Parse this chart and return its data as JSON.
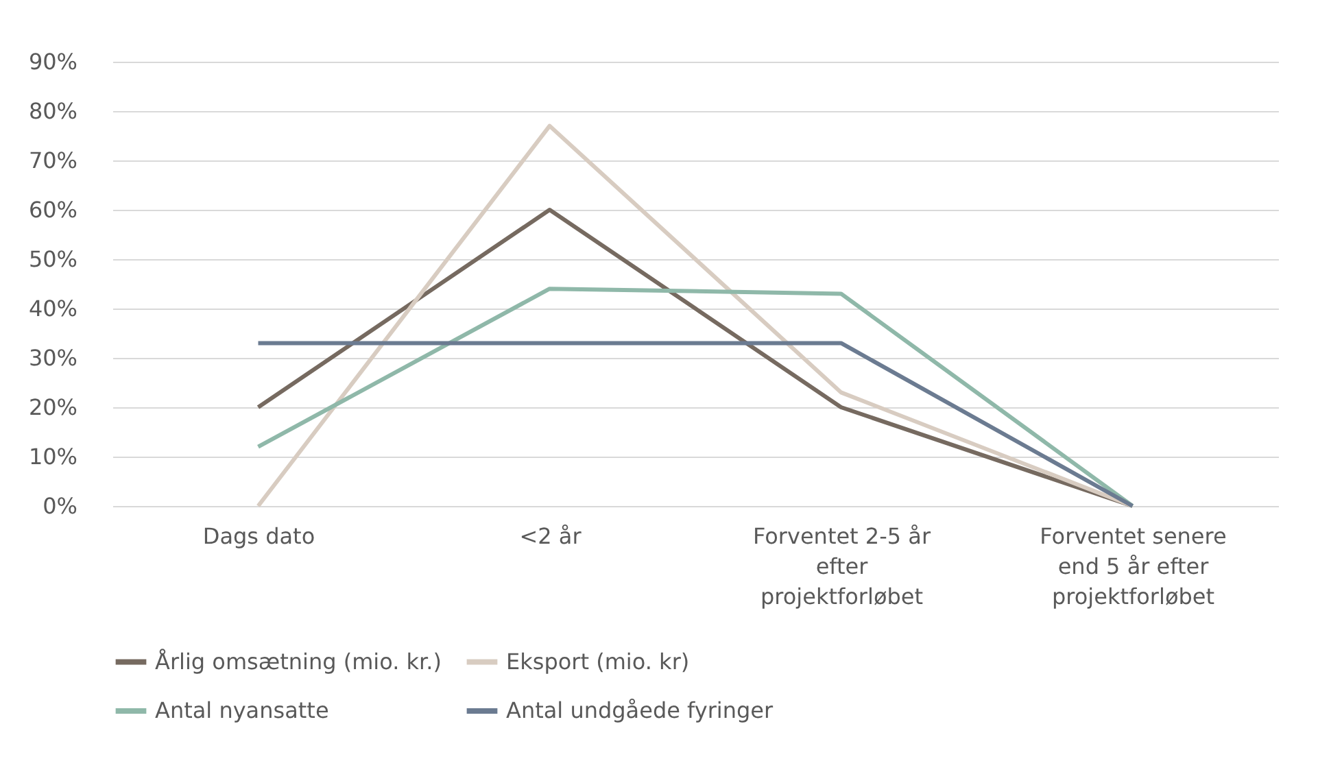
{
  "chart_data": {
    "type": "line",
    "categories": [
      "Dags dato",
      "<2 år",
      "Forventet 2-5 år efter projektforløbet",
      "Forventet senere end 5 år efter projektforløbet"
    ],
    "series": [
      {
        "name": "Årlig omsætning (mio. kr.)",
        "color": "#766a60",
        "values": [
          20,
          60,
          20,
          0
        ]
      },
      {
        "name": "Eksport (mio. kr)",
        "color": "#d8ccc1",
        "values": [
          0,
          77,
          23,
          0
        ]
      },
      {
        "name": "Antal nyansatte",
        "color": "#8fb8a9",
        "values": [
          12,
          44,
          43,
          0
        ]
      },
      {
        "name": "Antal undgåede fyringer",
        "color": "#6b7b91",
        "values": [
          33,
          33,
          33,
          0
        ]
      }
    ],
    "ylim": [
      0,
      90
    ],
    "yticks": [
      {
        "value": 0,
        "label": "0%"
      },
      {
        "value": 10,
        "label": "10%"
      },
      {
        "value": 20,
        "label": "20%"
      },
      {
        "value": 30,
        "label": "30%"
      },
      {
        "value": 40,
        "label": "40%"
      },
      {
        "value": 50,
        "label": "50%"
      },
      {
        "value": 60,
        "label": "60%"
      },
      {
        "value": 70,
        "label": "70%"
      },
      {
        "value": 80,
        "label": "80%"
      },
      {
        "value": 90,
        "label": "90%"
      }
    ],
    "grid": "y",
    "legend": "bottom",
    "marker": "none",
    "line_style": "solid"
  }
}
